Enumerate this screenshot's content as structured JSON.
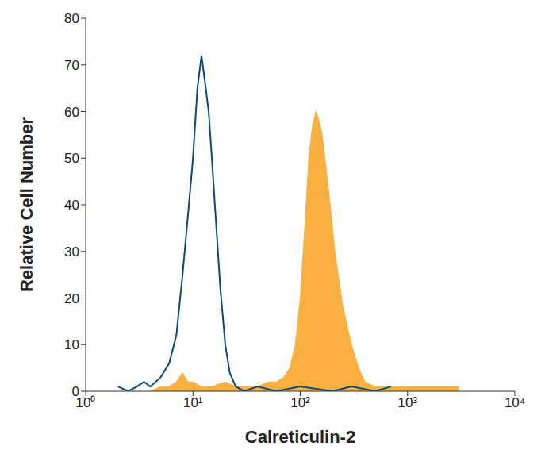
{
  "chart_data": {
    "type": "line",
    "x_label": "Calreticulin-2",
    "y_label": "Relative Cell Number",
    "log": "x",
    "grid": false,
    "xlim": [
      1,
      10000
    ],
    "xticks": [
      {
        "value": 1,
        "label": "10⁰"
      },
      {
        "value": 10,
        "label": "10¹"
      },
      {
        "value": 100,
        "label": "10²"
      },
      {
        "value": 1000,
        "label": "10³"
      },
      {
        "value": 10000,
        "label": "10⁴"
      }
    ],
    "ylim": [
      0,
      80
    ],
    "yticks": [
      0,
      10,
      20,
      30,
      40,
      50,
      60,
      70,
      80
    ],
    "series": [
      {
        "type": "area",
        "color": "#f9b040",
        "x": [
          4,
          5,
          6,
          7,
          8,
          9,
          10,
          12,
          15,
          20,
          25,
          30,
          40,
          50,
          60,
          70,
          80,
          90,
          100,
          110,
          120,
          130,
          140,
          150,
          160,
          170,
          190,
          210,
          250,
          300,
          350,
          400,
          500,
          700,
          1000,
          2000,
          3000
        ],
        "values": [
          0,
          1,
          1,
          2,
          4,
          2,
          2,
          1,
          1,
          2,
          1,
          1,
          1,
          2,
          2,
          3,
          5,
          10,
          20,
          35,
          50,
          57,
          60,
          58,
          55,
          50,
          40,
          30,
          18,
          10,
          5,
          2,
          1,
          1,
          1,
          1,
          1
        ]
      },
      {
        "type": "line",
        "color": "#0d4a7a",
        "x": [
          2,
          2.5,
          3,
          3.5,
          4,
          5,
          6,
          7,
          8,
          9,
          10,
          11,
          12,
          13,
          14,
          15,
          16,
          18,
          20,
          22,
          25,
          30,
          40,
          60,
          100,
          200,
          300,
          500,
          700
        ],
        "values": [
          1,
          0,
          1,
          2,
          1,
          3,
          6,
          12,
          25,
          38,
          50,
          65,
          72,
          66,
          60,
          50,
          40,
          22,
          10,
          4,
          1,
          0,
          1,
          0,
          1,
          0,
          1,
          0,
          1
        ]
      }
    ]
  }
}
